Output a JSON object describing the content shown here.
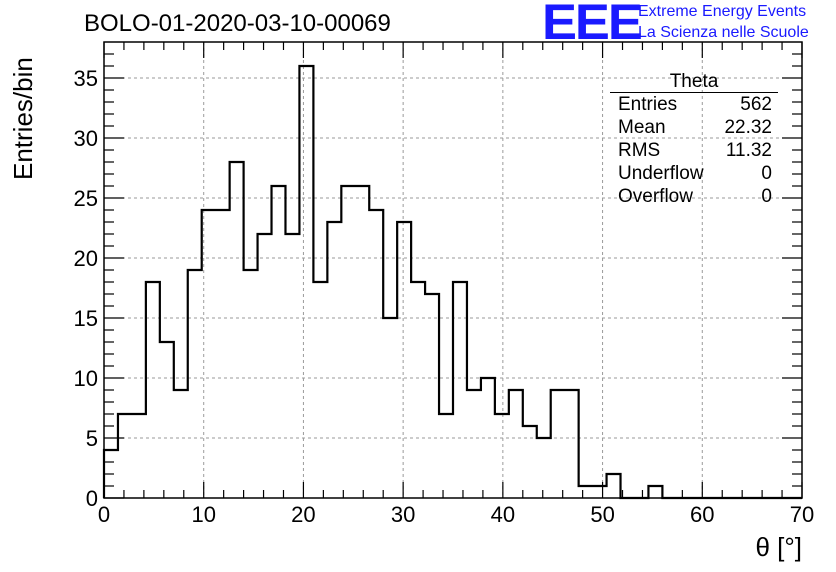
{
  "header": {
    "run_title": "BOLO-01-2020-03-10-00069",
    "logo_mark": "EEE",
    "logo_line1": "Extreme Energy Events",
    "logo_line2": "La Scienza nelle Scuole"
  },
  "stats_box": {
    "title": "Theta",
    "rows": [
      {
        "key": "Entries",
        "value": "562"
      },
      {
        "key": "Mean",
        "value": "22.32"
      },
      {
        "key": "RMS",
        "value": "11.32"
      },
      {
        "key": "Underflow",
        "value": "0"
      },
      {
        "key": "Overflow",
        "value": "0"
      }
    ]
  },
  "colors": {
    "logo": "#1a1aff",
    "line": "#000000",
    "grid": "#9a9a9a"
  },
  "chart_data": {
    "type": "histogram",
    "xlabel": "θ [°]",
    "ylabel": "Entries/bin",
    "xlim": [
      0,
      70
    ],
    "ylim": [
      0,
      38
    ],
    "grid": true,
    "bin_width": 1.4,
    "bin_start": 0,
    "xticks": [
      "0",
      "10",
      "20",
      "30",
      "40",
      "50",
      "60",
      "70"
    ],
    "yticks": [
      "0",
      "5",
      "10",
      "15",
      "20",
      "25",
      "30",
      "35"
    ],
    "values": [
      4,
      7,
      7,
      18,
      13,
      9,
      19,
      24,
      24,
      28,
      19,
      22,
      26,
      22,
      36,
      18,
      23,
      26,
      26,
      24,
      15,
      23,
      18,
      17,
      7,
      18,
      9,
      10,
      7,
      9,
      6,
      5,
      9,
      9,
      1,
      1,
      2,
      0,
      0,
      1,
      0,
      0,
      0,
      0,
      0,
      0,
      0,
      0,
      0,
      0
    ]
  }
}
